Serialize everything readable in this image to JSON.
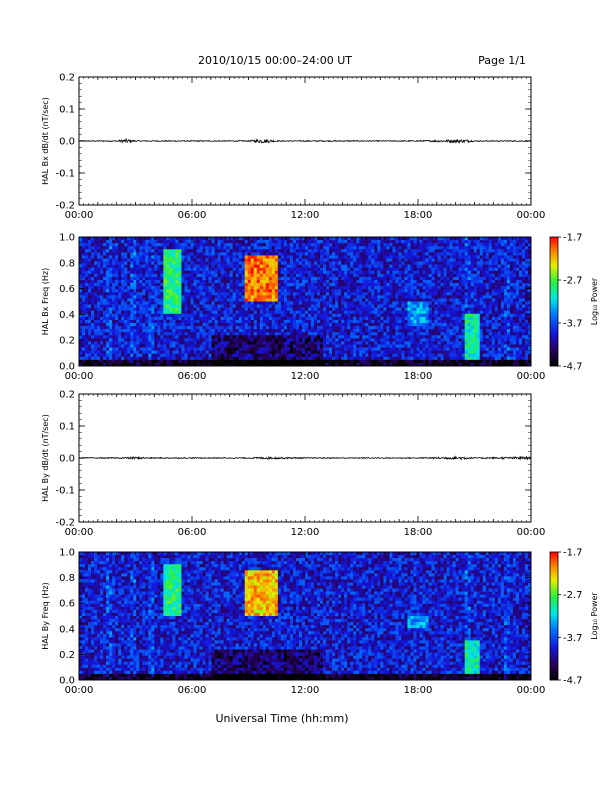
{
  "header": {
    "title": "2010/10/15   00:00–24:00 UT",
    "page": "Page 1/1"
  },
  "xaxis": {
    "title": "Universal Time (hh:mm)",
    "ticks": [
      "00:00",
      "06:00",
      "12:00",
      "18:00",
      "00:00"
    ]
  },
  "colorbar": {
    "title": "Log₁₀ Power",
    "range": [
      -4.7,
      -1.7
    ],
    "ticks": [
      "-1.7",
      "-2.7",
      "-3.7",
      "-4.7"
    ]
  },
  "chart_data": [
    {
      "type": "line",
      "ylabel": "HAL Bx dB/dt (nT/sec)",
      "xlim": [
        0,
        24
      ],
      "ylim": [
        -0.2,
        0.2
      ],
      "yticks": [
        "0.2",
        "0.1",
        "0.0",
        "-0.1",
        "-0.2"
      ],
      "series": [
        {
          "x": [
            0,
            2,
            2.5,
            3,
            4,
            9,
            9.5,
            10,
            10.5,
            12,
            18,
            20.5,
            21,
            24
          ],
          "values": [
            0.0,
            0.0,
            0.005,
            0.0,
            0.0,
            0.0,
            0.004,
            0.005,
            0.0,
            0.0,
            0.0,
            0.004,
            0.0,
            0.0
          ]
        }
      ]
    },
    {
      "type": "heatmap",
      "ylabel": "HAL Bx Freq (Hz)",
      "xlim": [
        0,
        24
      ],
      "ylim": [
        0,
        1.0
      ],
      "yticks": [
        "1.0",
        "0.8",
        "0.6",
        "0.4",
        "0.2",
        "0.0"
      ],
      "zlim": [
        -4.7,
        -1.7
      ],
      "features": [
        {
          "t": [
            4.5,
            5.5
          ],
          "f": [
            0.4,
            0.9
          ],
          "level": -2.9
        },
        {
          "t": [
            8.8,
            10.5
          ],
          "f": [
            0.5,
            0.85
          ],
          "level": -2.0
        },
        {
          "t": [
            20.5,
            21.2
          ],
          "f": [
            0.05,
            0.4
          ],
          "level": -3.0
        },
        {
          "t": [
            17.5,
            18.5
          ],
          "f": [
            0.3,
            0.5
          ],
          "level": -3.4
        }
      ]
    },
    {
      "type": "line",
      "ylabel": "HAL By dB/dt (nT/sec)",
      "xlim": [
        0,
        24
      ],
      "ylim": [
        -0.2,
        0.2
      ],
      "yticks": [
        "0.2",
        "0.1",
        "0.0",
        "-0.1",
        "-0.2"
      ],
      "series": [
        {
          "x": [
            0,
            2,
            3,
            4,
            9,
            10,
            12,
            18,
            20.5,
            21,
            23.8,
            24
          ],
          "values": [
            0.0,
            0.0,
            0.002,
            0.0,
            0.0,
            0.002,
            0.0,
            0.0,
            0.003,
            0.0,
            0.003,
            0.0
          ]
        }
      ]
    },
    {
      "type": "heatmap",
      "ylabel": "HAL By Freq (Hz)",
      "xlim": [
        0,
        24
      ],
      "ylim": [
        0,
        1.0
      ],
      "yticks": [
        "1.0",
        "0.8",
        "0.6",
        "0.4",
        "0.2",
        "0.0"
      ],
      "zlim": [
        -4.7,
        -1.7
      ],
      "features": [
        {
          "t": [
            4.5,
            5.5
          ],
          "f": [
            0.5,
            0.9
          ],
          "level": -2.9
        },
        {
          "t": [
            8.8,
            10.5
          ],
          "f": [
            0.5,
            0.85
          ],
          "level": -2.2
        },
        {
          "t": [
            20.5,
            21.2
          ],
          "f": [
            0.05,
            0.3
          ],
          "level": -3.0
        },
        {
          "t": [
            17.5,
            18.5
          ],
          "f": [
            0.4,
            0.5
          ],
          "level": -3.4
        }
      ]
    }
  ]
}
